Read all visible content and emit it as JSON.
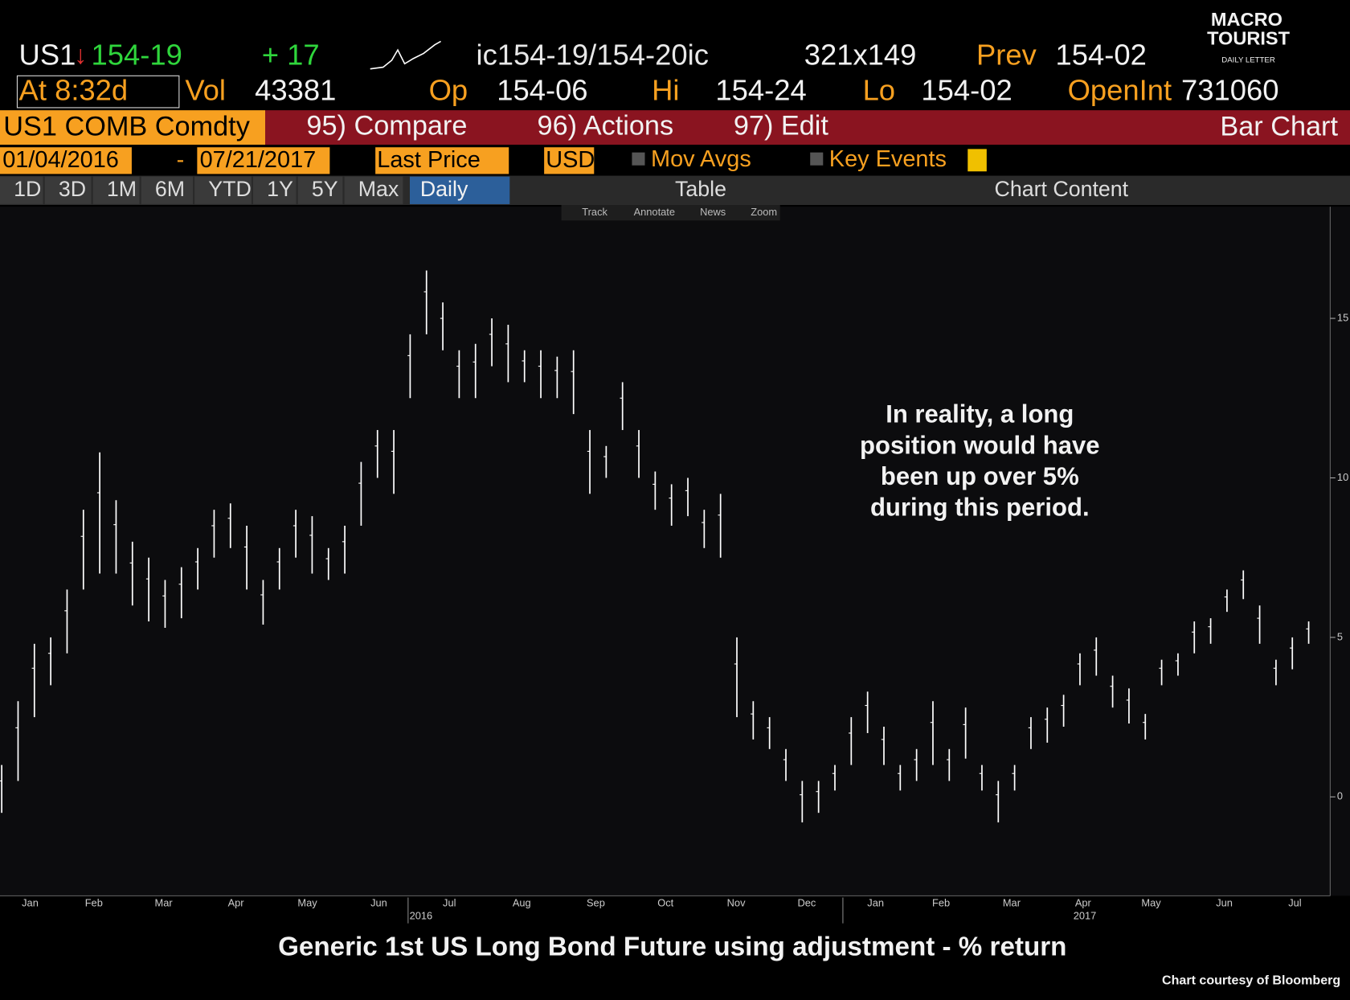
{
  "header": {
    "ticker": "US1",
    "last": "154-19",
    "change": "+ 17",
    "bid_ask": "ic154-19/154-20ic",
    "size": "321x149",
    "prev_label": "Prev",
    "prev": "154-02",
    "time": "At 8:32d",
    "vol_label": "Vol",
    "vol": "43381",
    "open_label": "Op",
    "open": "154-06",
    "hi_label": "Hi",
    "hi": "154-24",
    "lo_label": "Lo",
    "lo": "154-02",
    "oi_label": "OpenInt",
    "oi": "731060"
  },
  "logo": {
    "line1": "MACRO",
    "line2": "TOURIST",
    "line3": "DAILY LETTER"
  },
  "toolbar1": {
    "security": "US1 COMB Comdty",
    "menus": [
      "95) Compare",
      "96) Actions",
      "97) Edit"
    ],
    "view": "Bar Chart"
  },
  "toolbar2": {
    "start": "01/04/2016",
    "separator": "-",
    "end": "07/21/2017",
    "field": "Last Price",
    "currency": "USD",
    "options": [
      "Mov Avgs",
      "Key Events"
    ]
  },
  "toolbar3": {
    "periods": [
      "1D",
      "3D",
      "1M",
      "6M",
      "YTD",
      "1Y",
      "5Y",
      "Max"
    ],
    "frequency": "Daily",
    "table": "Table",
    "content": "Chart Content"
  },
  "tools": [
    "Track",
    "Annotate",
    "News",
    "Zoom"
  ],
  "chart_data": {
    "type": "hilo",
    "title": "Generic 1st US Long Bond Future using adjustment - % return",
    "annotation": [
      "In reality, a long",
      "position would have",
      "been up over 5%",
      "during this period."
    ],
    "credit": "Chart courtesy of Bloomberg",
    "color": "#ffffff",
    "months": [
      "Jan",
      "Feb",
      "Mar",
      "Apr",
      "May",
      "Jun",
      "Jul",
      "Aug",
      "Sep",
      "Oct",
      "Nov",
      "Dec",
      "Jan",
      "Feb",
      "Mar",
      "Apr",
      "May",
      "Jun",
      "Jul"
    ],
    "years": [
      "2016",
      "2017"
    ],
    "ylim": [
      -3.1,
      18.5
    ],
    "yticks": [
      0,
      5,
      10,
      15
    ],
    "high": [
      1.0,
      3.0,
      4.8,
      5.0,
      6.5,
      9.0,
      10.8,
      9.3,
      8.0,
      7.5,
      6.8,
      7.2,
      7.8,
      9.0,
      9.2,
      8.5,
      6.8,
      7.8,
      9.0,
      8.8,
      7.8,
      8.5,
      10.5,
      11.5,
      11.5,
      14.5,
      16.5,
      15.5,
      14.0,
      14.2,
      15.0,
      14.8,
      14.0,
      14.0,
      13.8,
      14.0,
      11.5,
      11.0,
      13.0,
      11.5,
      10.2,
      9.8,
      10.0,
      9.0,
      9.5,
      5.0,
      3.0,
      2.5,
      1.5,
      0.5,
      0.5,
      1.0,
      2.5,
      3.3,
      2.2,
      1.0,
      1.5,
      3.0,
      1.5,
      2.8,
      1.0,
      0.5,
      1.0,
      2.5,
      2.8,
      3.2,
      4.5,
      5.0,
      3.8,
      3.4,
      2.6,
      4.3,
      4.5,
      5.5,
      5.6,
      6.5,
      7.1,
      6.0,
      4.3,
      5.0,
      5.5
    ],
    "low": [
      -0.5,
      0.5,
      2.5,
      3.5,
      4.5,
      6.5,
      7.0,
      7.0,
      6.0,
      5.5,
      5.3,
      5.6,
      6.5,
      7.5,
      7.8,
      6.5,
      5.4,
      6.5,
      7.5,
      7.0,
      6.8,
      7.0,
      8.5,
      10.0,
      9.5,
      12.5,
      14.5,
      14.0,
      12.5,
      12.5,
      13.5,
      13.0,
      13.0,
      12.5,
      12.5,
      12.0,
      9.5,
      10.0,
      11.5,
      10.0,
      9.0,
      8.5,
      8.8,
      7.8,
      7.5,
      2.5,
      1.8,
      1.5,
      0.5,
      -0.8,
      -0.5,
      0.2,
      1.0,
      2.0,
      1.0,
      0.2,
      0.5,
      1.0,
      0.5,
      1.2,
      0.2,
      -0.8,
      0.2,
      1.5,
      1.7,
      2.2,
      3.5,
      3.8,
      2.8,
      2.3,
      1.8,
      3.5,
      3.8,
      4.5,
      4.8,
      5.8,
      6.2,
      4.8,
      3.5,
      4.0,
      4.8
    ]
  }
}
